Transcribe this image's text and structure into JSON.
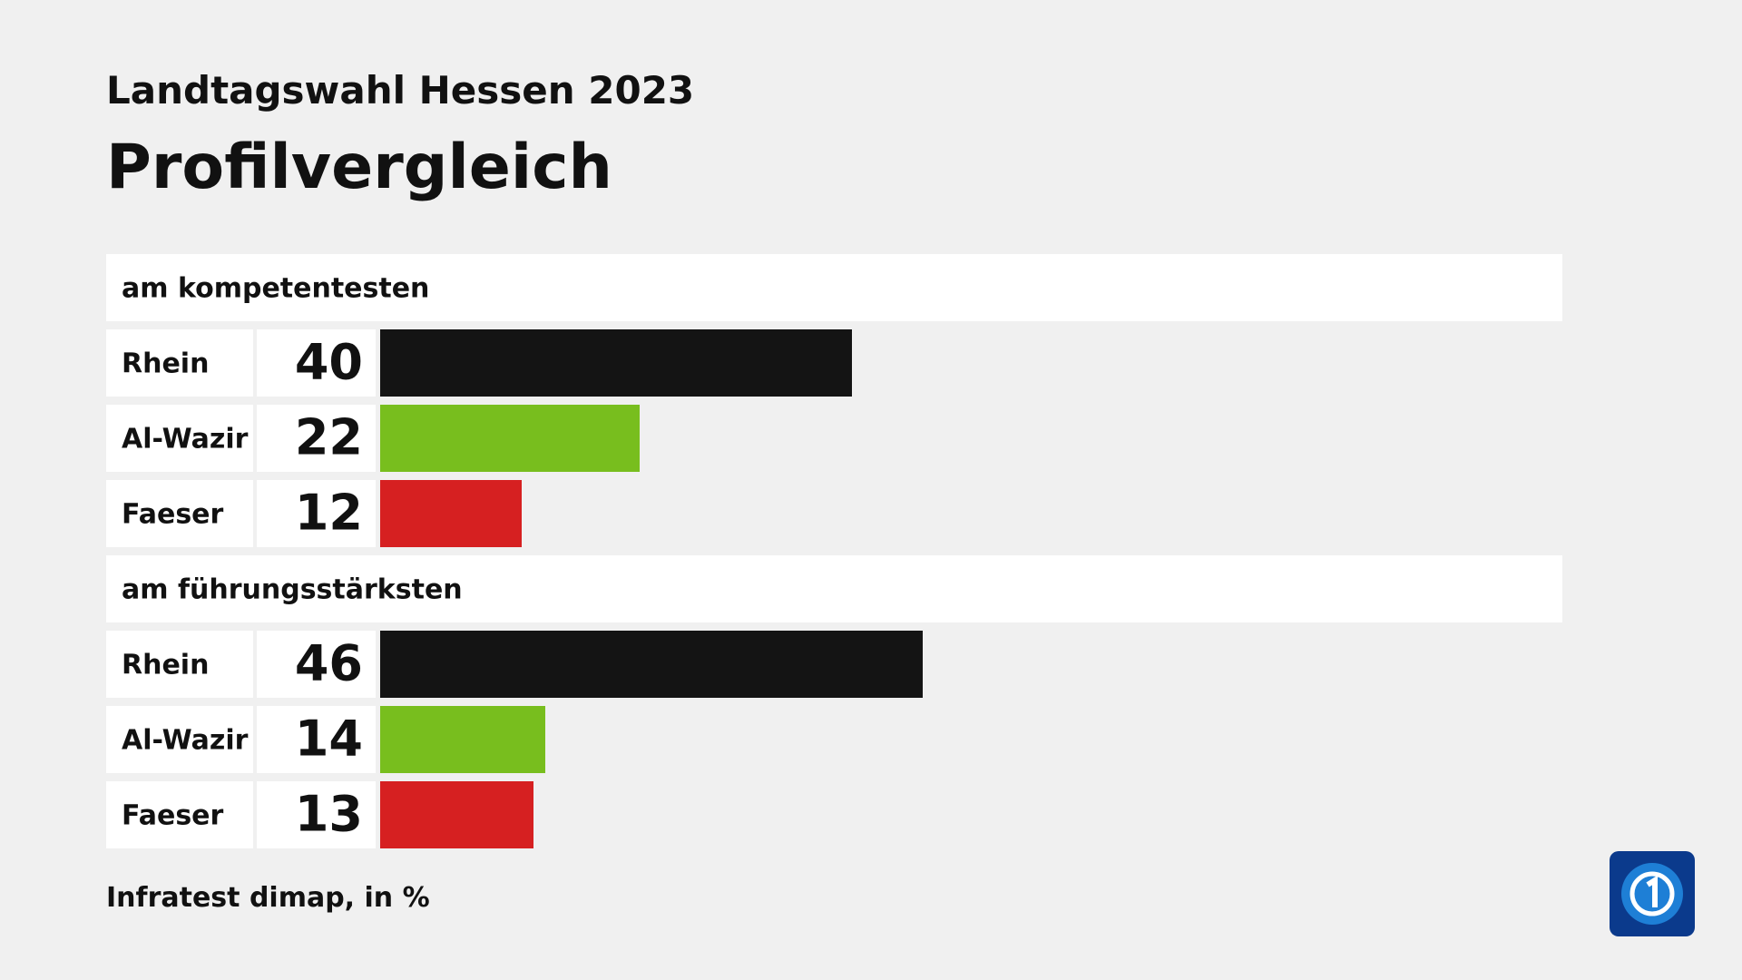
{
  "chart_data": {
    "type": "bar",
    "title": "Landtagswahl Hessen 2023",
    "subtitle": "Profilvergleich",
    "categories": [
      "Rhein",
      "Al-Wazir",
      "Faeser"
    ],
    "colors": [
      "#141414",
      "#78be1e",
      "#d62021"
    ],
    "groups": [
      {
        "name": "am kompetentesten",
        "values": [
          40,
          22,
          12
        ]
      },
      {
        "name": "am führungsstärksten",
        "values": [
          46,
          14,
          13
        ]
      }
    ],
    "source": "Infratest dimap, in %"
  }
}
